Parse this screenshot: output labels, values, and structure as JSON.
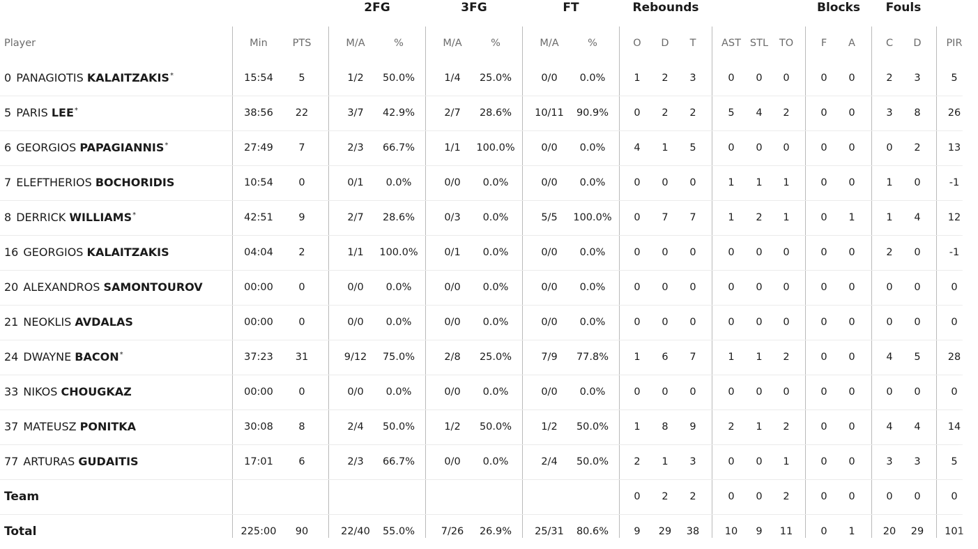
{
  "groups": {
    "fg2": "2FG",
    "fg3": "3FG",
    "ft": "FT",
    "rebounds": "Rebounds",
    "blocks": "Blocks",
    "fouls": "Fouls"
  },
  "columns": [
    "Min",
    "PTS",
    "M/A",
    "%",
    "M/A",
    "%",
    "M/A",
    "%",
    "O",
    "D",
    "T",
    "AST",
    "STL",
    "TO",
    "F",
    "A",
    "C",
    "D",
    "PIR"
  ],
  "player_header": "Player",
  "players": [
    {
      "num": "0",
      "first": "PANAGIOTIS",
      "last": "KALAITZAKIS",
      "star": "*",
      "stats": [
        "15:54",
        "5",
        "1/2",
        "50.0%",
        "1/4",
        "25.0%",
        "0/0",
        "0.0%",
        "1",
        "2",
        "3",
        "0",
        "0",
        "0",
        "0",
        "0",
        "2",
        "3",
        "5"
      ]
    },
    {
      "num": "5",
      "first": "PARIS",
      "last": "LEE",
      "star": "*",
      "stats": [
        "38:56",
        "22",
        "3/7",
        "42.9%",
        "2/7",
        "28.6%",
        "10/11",
        "90.9%",
        "0",
        "2",
        "2",
        "5",
        "4",
        "2",
        "0",
        "0",
        "3",
        "8",
        "26"
      ]
    },
    {
      "num": "6",
      "first": "GEORGIOS",
      "last": "PAPAGIANNIS",
      "star": "*",
      "stats": [
        "27:49",
        "7",
        "2/3",
        "66.7%",
        "1/1",
        "100.0%",
        "0/0",
        "0.0%",
        "4",
        "1",
        "5",
        "0",
        "0",
        "0",
        "0",
        "0",
        "0",
        "2",
        "13"
      ]
    },
    {
      "num": "7",
      "first": "ELEFTHERIOS",
      "last": "BOCHORIDIS",
      "star": "",
      "stats": [
        "10:54",
        "0",
        "0/1",
        "0.0%",
        "0/0",
        "0.0%",
        "0/0",
        "0.0%",
        "0",
        "0",
        "0",
        "1",
        "1",
        "1",
        "0",
        "0",
        "1",
        "0",
        "-1"
      ]
    },
    {
      "num": "8",
      "first": "DERRICK",
      "last": "WILLIAMS",
      "star": "*",
      "stats": [
        "42:51",
        "9",
        "2/7",
        "28.6%",
        "0/3",
        "0.0%",
        "5/5",
        "100.0%",
        "0",
        "7",
        "7",
        "1",
        "2",
        "1",
        "0",
        "1",
        "1",
        "4",
        "12"
      ]
    },
    {
      "num": "16",
      "first": "GEORGIOS",
      "last": "KALAITZAKIS",
      "star": "",
      "stats": [
        "04:04",
        "2",
        "1/1",
        "100.0%",
        "0/1",
        "0.0%",
        "0/0",
        "0.0%",
        "0",
        "0",
        "0",
        "0",
        "0",
        "0",
        "0",
        "0",
        "2",
        "0",
        "-1"
      ]
    },
    {
      "num": "20",
      "first": "ALEXANDROS",
      "last": "SAMONTOUROV",
      "star": "",
      "stats": [
        "00:00",
        "0",
        "0/0",
        "0.0%",
        "0/0",
        "0.0%",
        "0/0",
        "0.0%",
        "0",
        "0",
        "0",
        "0",
        "0",
        "0",
        "0",
        "0",
        "0",
        "0",
        "0"
      ]
    },
    {
      "num": "21",
      "first": "NEOKLIS",
      "last": "AVDALAS",
      "star": "",
      "stats": [
        "00:00",
        "0",
        "0/0",
        "0.0%",
        "0/0",
        "0.0%",
        "0/0",
        "0.0%",
        "0",
        "0",
        "0",
        "0",
        "0",
        "0",
        "0",
        "0",
        "0",
        "0",
        "0"
      ]
    },
    {
      "num": "24",
      "first": "DWAYNE",
      "last": "BACON",
      "star": "*",
      "stats": [
        "37:23",
        "31",
        "9/12",
        "75.0%",
        "2/8",
        "25.0%",
        "7/9",
        "77.8%",
        "1",
        "6",
        "7",
        "1",
        "1",
        "2",
        "0",
        "0",
        "4",
        "5",
        "28"
      ]
    },
    {
      "num": "33",
      "first": "NIKOS",
      "last": "CHOUGKAZ",
      "star": "",
      "stats": [
        "00:00",
        "0",
        "0/0",
        "0.0%",
        "0/0",
        "0.0%",
        "0/0",
        "0.0%",
        "0",
        "0",
        "0",
        "0",
        "0",
        "0",
        "0",
        "0",
        "0",
        "0",
        "0"
      ]
    },
    {
      "num": "37",
      "first": "MATEUSZ",
      "last": "PONITKA",
      "star": "",
      "stats": [
        "30:08",
        "8",
        "2/4",
        "50.0%",
        "1/2",
        "50.0%",
        "1/2",
        "50.0%",
        "1",
        "8",
        "9",
        "2",
        "1",
        "2",
        "0",
        "0",
        "4",
        "4",
        "14"
      ]
    },
    {
      "num": "77",
      "first": "ARTURAS",
      "last": "GUDAITIS",
      "star": "",
      "stats": [
        "17:01",
        "6",
        "2/3",
        "66.7%",
        "0/0",
        "0.0%",
        "2/4",
        "50.0%",
        "2",
        "1",
        "3",
        "0",
        "0",
        "1",
        "0",
        "0",
        "3",
        "3",
        "5"
      ]
    }
  ],
  "team": {
    "label": "Team",
    "stats": [
      "",
      "",
      "",
      "",
      "",
      "",
      "",
      "",
      "0",
      "2",
      "2",
      "0",
      "0",
      "2",
      "0",
      "0",
      "0",
      "0",
      "0"
    ]
  },
  "total": {
    "label": "Total",
    "stats": [
      "225:00",
      "90",
      "22/40",
      "55.0%",
      "7/26",
      "26.9%",
      "25/31",
      "80.6%",
      "9",
      "29",
      "38",
      "10",
      "9",
      "11",
      "0",
      "1",
      "20",
      "29",
      "101"
    ]
  }
}
